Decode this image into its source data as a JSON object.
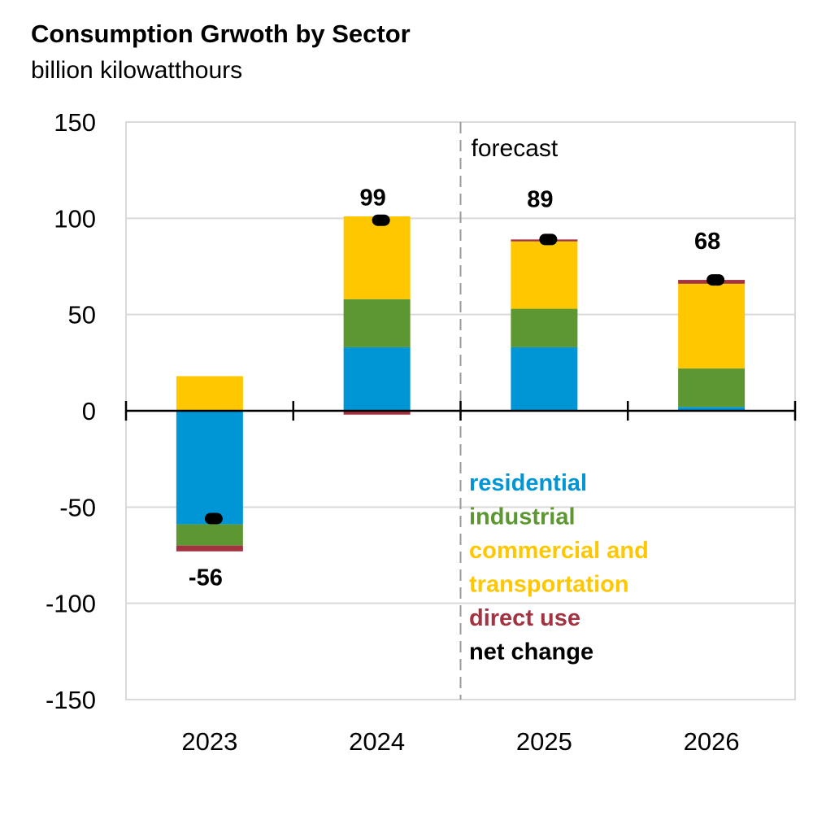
{
  "chart_data": {
    "type": "bar",
    "stacked": true,
    "title": "Consumption Grwoth by Sector",
    "subtitle": "billion kilowatthours",
    "xlabel": "",
    "ylabel": "",
    "ylim": [
      -150,
      150
    ],
    "yticks": [
      "150",
      "100",
      "50",
      "0",
      "-50",
      "-100",
      "-150"
    ],
    "ytick_values": [
      150,
      100,
      50,
      0,
      -50,
      -100,
      -150
    ],
    "categories": [
      "2023",
      "2024",
      "2025",
      "2026"
    ],
    "grid": true,
    "annotation": "forecast",
    "series": [
      {
        "name": "residential",
        "color": "#0096D6",
        "values": [
          -59,
          33,
          33,
          2
        ]
      },
      {
        "name": "industrial",
        "color": "#5D9732",
        "values": [
          -11,
          25,
          20,
          20
        ]
      },
      {
        "name": "commercial and transportation",
        "color": "#FFC700",
        "values": [
          18,
          43,
          35,
          44
        ]
      },
      {
        "name": "direct use",
        "color": "#A33340",
        "values": [
          -3,
          -2,
          1,
          2
        ]
      }
    ],
    "net_change": {
      "name": "net change",
      "color": "#000000",
      "values": [
        -56,
        99,
        89,
        68
      ],
      "labels": [
        "-56",
        "99",
        "89",
        "68"
      ]
    },
    "legend": {
      "placement": "bottom-right",
      "lines": [
        {
          "text": "residential",
          "color": "#0096D6"
        },
        {
          "text": "industrial",
          "color": "#5D9732"
        },
        {
          "text": "commercial and",
          "color": "#FFC700"
        },
        {
          "text": "transportation",
          "color": "#FFC700"
        },
        {
          "text": "direct use",
          "color": "#A33340"
        },
        {
          "text": "net change",
          "color": "#000000"
        }
      ]
    }
  }
}
